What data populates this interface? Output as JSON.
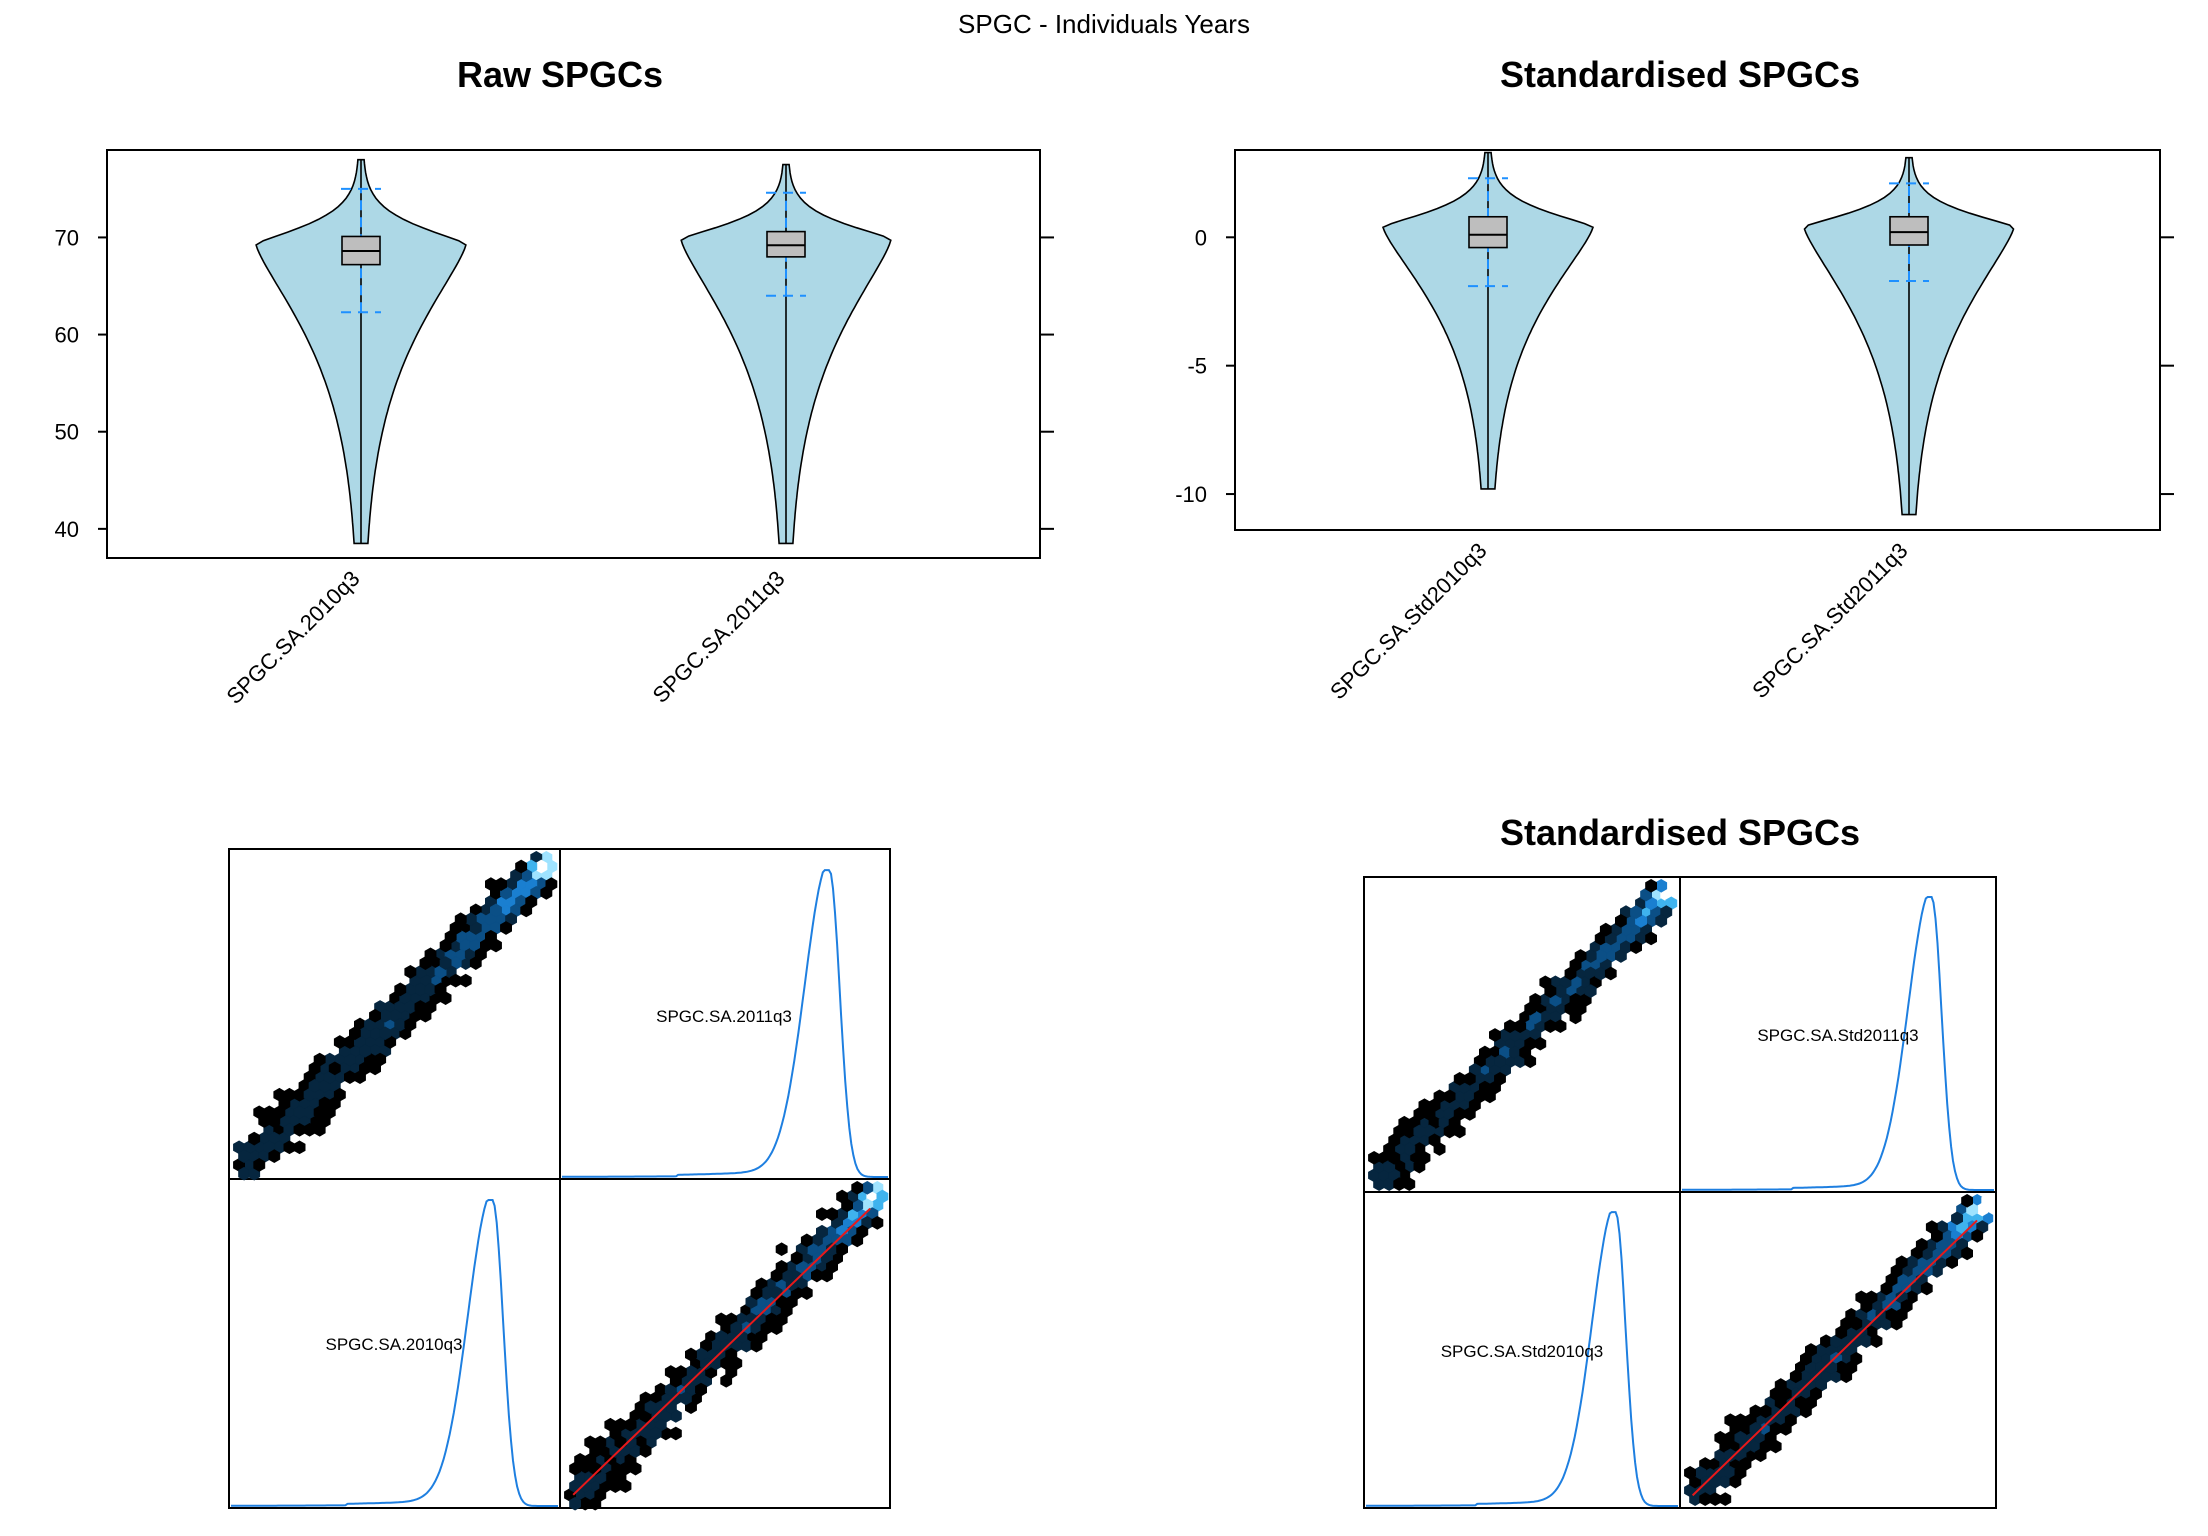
{
  "figure": {
    "main_title": "SPGC - Individuals Years",
    "colors": {
      "violin_fill": "#add8e6",
      "box_fill": "#bebebe",
      "whisker": "#1e90ff",
      "density_line": "#1e7fe0",
      "fit_line": "#e8191a",
      "hexbin_ramp": [
        "#000000",
        "#06263f",
        "#0b4f86",
        "#1a7fd0",
        "#3fb3ee",
        "#9fe3ff",
        "#ffffff"
      ]
    }
  },
  "chart_data": [
    {
      "type": "violin",
      "title": "Raw SPGCs",
      "xlabel": "",
      "ylabel": "",
      "ylim": [
        37,
        79
      ],
      "yticks": [
        40,
        50,
        60,
        70
      ],
      "categories": [
        "SPGC.SA.2010q3",
        "SPGC.SA.2011q3"
      ],
      "series": [
        {
          "name": "SPGC.SA.2010q3",
          "min": 38.5,
          "whisker_low": 62.3,
          "q1": 67.2,
          "median": 68.6,
          "q3": 70.1,
          "whisker_high": 75.0,
          "max": 78.0,
          "mode": 69.3
        },
        {
          "name": "SPGC.SA.2011q3",
          "min": 38.5,
          "whisker_low": 64.0,
          "q1": 68.0,
          "median": 69.2,
          "q3": 70.6,
          "whisker_high": 74.6,
          "max": 77.5,
          "mode": 69.8
        }
      ]
    },
    {
      "type": "violin",
      "title": "Standardised SPGCs",
      "xlabel": "",
      "ylabel": "",
      "ylim": [
        -11.4,
        3.4
      ],
      "yticks": [
        -10,
        -5,
        0
      ],
      "categories": [
        "SPGC.SA.Std2010q3",
        "SPGC.SA.Std2011q3"
      ],
      "series": [
        {
          "name": "SPGC.SA.Std2010q3",
          "min": -9.8,
          "whisker_low": -1.9,
          "q1": -0.4,
          "median": 0.1,
          "q3": 0.8,
          "whisker_high": 2.3,
          "max": 3.3,
          "mode": 0.4
        },
        {
          "name": "SPGC.SA.Std2011q3",
          "min": -10.8,
          "whisker_low": -1.7,
          "q1": -0.3,
          "median": 0.2,
          "q3": 0.8,
          "whisker_high": 2.1,
          "max": 3.1,
          "mode": 0.4
        }
      ]
    },
    {
      "type": "scatter",
      "title": "",
      "subtype": "hexbin-scatter-matrix",
      "variables": [
        "SPGC.SA.2010q3",
        "SPGC.SA.2011q3"
      ],
      "range": [
        38.5,
        78.0
      ],
      "correlation_trend": "strong positive",
      "fit_line": true
    },
    {
      "type": "scatter",
      "title": "Standardised SPGCs",
      "subtype": "hexbin-scatter-matrix",
      "variables": [
        "SPGC.SA.Std2010q3",
        "SPGC.SA.Std2011q3"
      ],
      "range": [
        -10.8,
        3.3
      ],
      "correlation_trend": "strong positive",
      "fit_line": true
    }
  ]
}
